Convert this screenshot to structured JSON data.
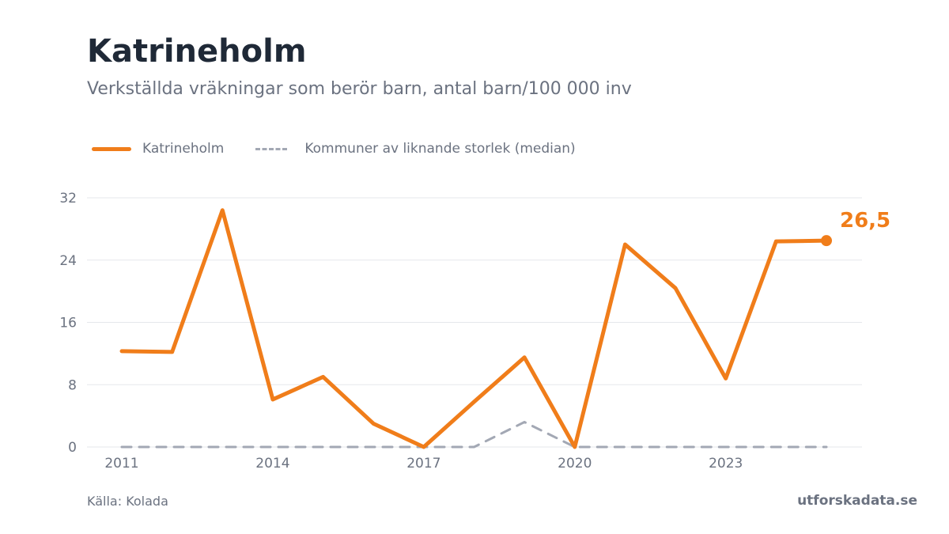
{
  "chart_data": {
    "type": "line",
    "title": "Katrineholm",
    "subtitle": "Verkställda vräkningar som berör barn, antal barn/100 000 inv",
    "x": [
      2011,
      2012,
      2013,
      2014,
      2015,
      2016,
      2017,
      2018,
      2019,
      2020,
      2021,
      2022,
      2023,
      2024,
      2025
    ],
    "series": [
      {
        "name": "Katrineholm",
        "color": "#f07d1a",
        "style": "solid",
        "values": [
          12.3,
          12.2,
          30.4,
          6.1,
          9.0,
          3.0,
          0.0,
          5.8,
          11.5,
          0.0,
          26.0,
          20.4,
          8.8,
          26.4,
          26.5
        ]
      },
      {
        "name": "Kommuner av liknande storlek (median)",
        "color": "#a3a8b4",
        "style": "dashed",
        "values": [
          0,
          0,
          0,
          0,
          0,
          0,
          0,
          0,
          3.2,
          0,
          0,
          0,
          0,
          0,
          0
        ]
      }
    ],
    "x_ticks": [
      "2011",
      "2014",
      "2017",
      "2020",
      "2023"
    ],
    "y_ticks": [
      "0",
      "8",
      "16",
      "24",
      "32"
    ],
    "ylim": [
      0,
      32
    ],
    "xlim": [
      2011,
      2025
    ],
    "grid": true,
    "legend_position": "top-left",
    "end_label": "26,5"
  },
  "footer": {
    "source": "Källa: Kolada",
    "brand": "utforskadata.se"
  }
}
